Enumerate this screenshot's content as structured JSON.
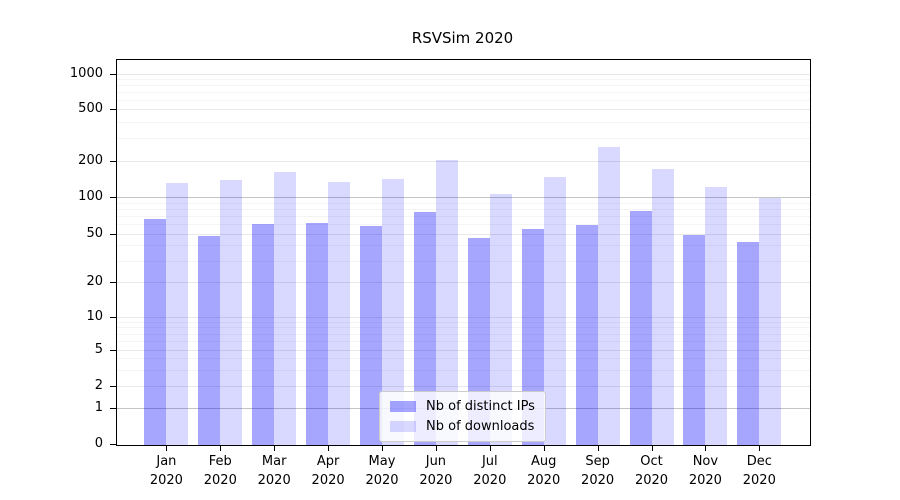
{
  "chart_data": {
    "type": "bar",
    "title": "RSVSim 2020",
    "categories": [
      "Jan 2020",
      "Feb 2020",
      "Mar 2020",
      "Apr 2020",
      "May 2020",
      "Jun 2020",
      "Jul 2020",
      "Aug 2020",
      "Sep 2020",
      "Oct 2020",
      "Nov 2020",
      "Dec 2020"
    ],
    "series": [
      {
        "name": "Nb of distinct IPs",
        "color": "rgba(0,0,255,0.35)",
        "values": [
          67,
          49,
          61,
          62,
          59,
          77,
          47,
          55,
          60,
          78,
          50,
          43
        ]
      },
      {
        "name": "Nb of downloads",
        "color": "rgba(0,0,255,0.15)",
        "values": [
          133,
          142,
          165,
          136,
          144,
          208,
          108,
          150,
          260,
          176,
          124,
          100
        ]
      }
    ],
    "xlabel": "",
    "ylabel": "",
    "yscale": "symlog",
    "yticks": [
      0,
      1,
      2,
      5,
      10,
      20,
      50,
      100,
      200,
      500,
      1000
    ],
    "ylim": [
      0,
      1400
    ],
    "grid": true,
    "minor_grid_values": [
      3,
      4,
      6,
      7,
      8,
      9,
      30,
      40,
      60,
      70,
      80,
      90,
      300,
      400,
      600,
      700,
      800,
      900
    ],
    "major_grid_values": [
      2,
      5,
      10,
      20,
      50,
      200,
      500,
      1000
    ],
    "emphasized_gridlines": [
      1,
      100
    ],
    "legend_position": "lower-center-inside"
  },
  "colors": {
    "grid_minor": "#f4f4f4",
    "grid_major": "#e8e8e8",
    "grid_emphasized": "#c4c4c4",
    "axis": "#000000"
  }
}
